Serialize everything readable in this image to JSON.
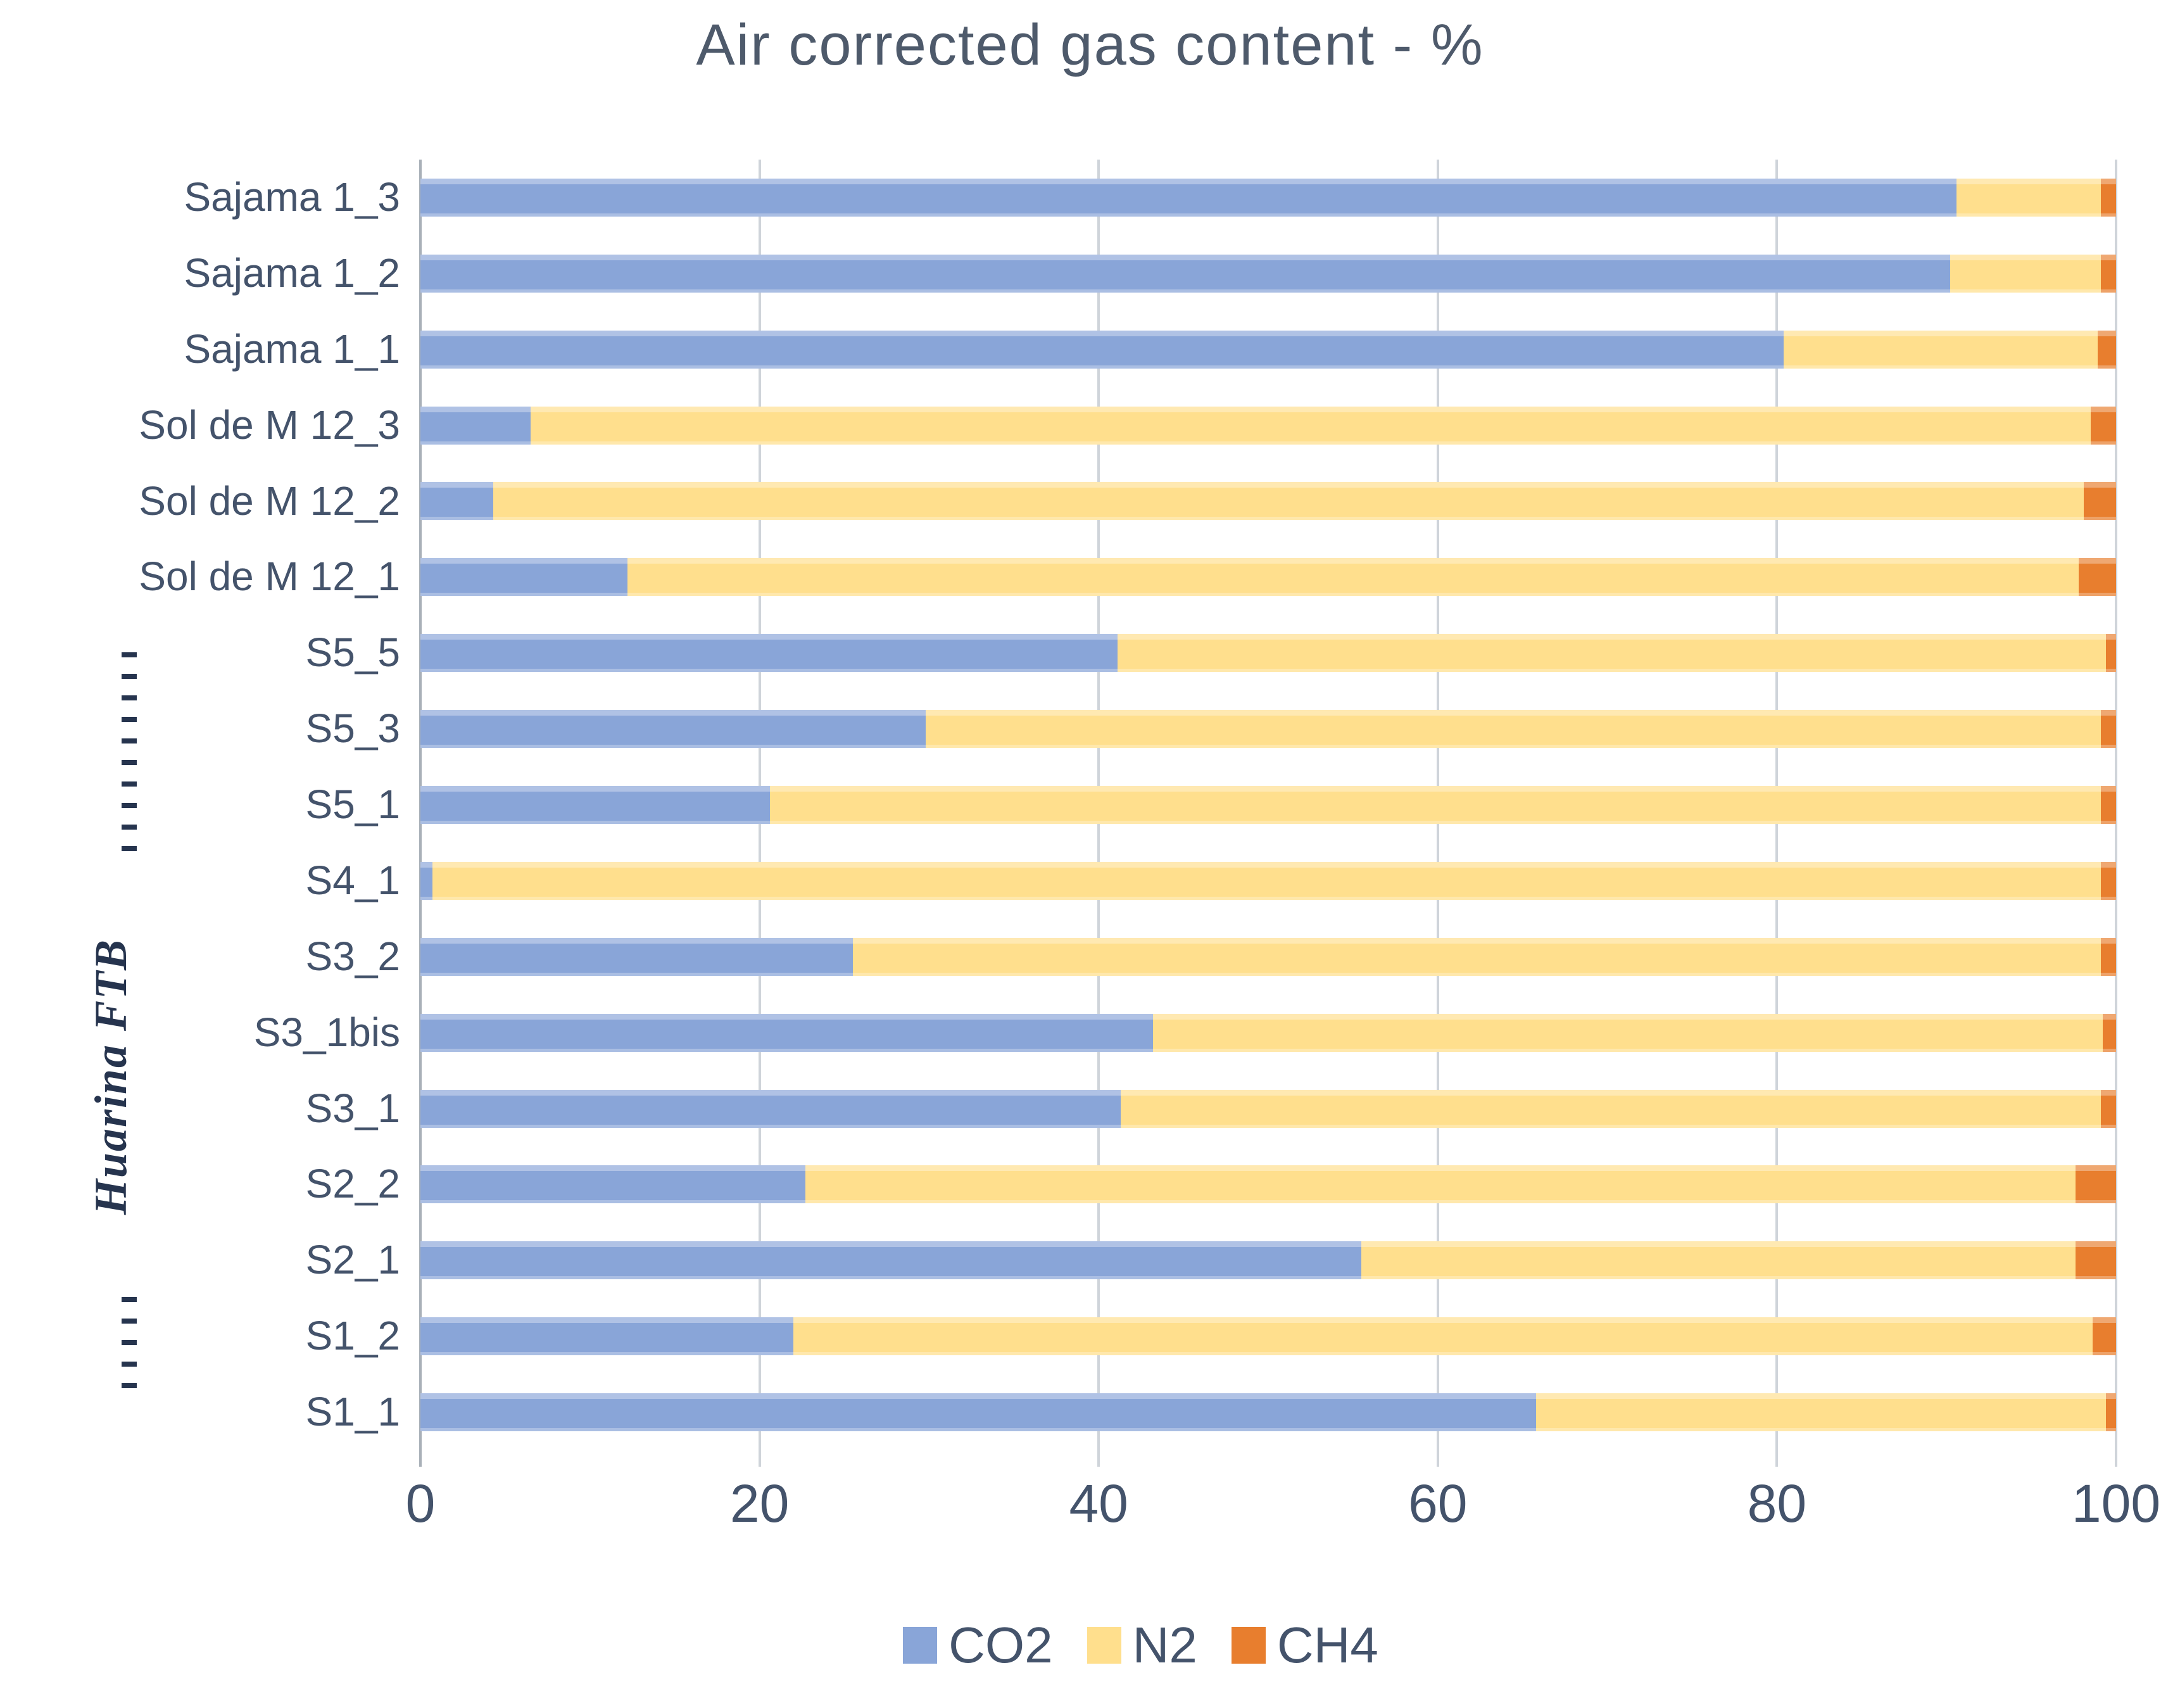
{
  "title": "Air corrected gas content - %",
  "chart_data": {
    "type": "bar",
    "orientation": "horizontal",
    "stacked": true,
    "title": "Air corrected gas content - %",
    "categories": [
      "Sajama 1_3",
      "Sajama 1_2",
      "Sajama 1_1",
      "Sol de M 12_3",
      "Sol de M 12_2",
      "Sol de M 12_1",
      "S5_5",
      "S5_3",
      "S5_1",
      "S4_1",
      "S3_2",
      "S3_1bis",
      "S3_1",
      "S2_2",
      "S2_1",
      "S1_2",
      "S1_1"
    ],
    "series": [
      {
        "name": "CO2",
        "color": "#89a5d8",
        "values": [
          90.6,
          90.2,
          80.4,
          6.5,
          4.3,
          12.2,
          41.1,
          29.8,
          20.6,
          0.7,
          25.5,
          43.2,
          41.3,
          22.7,
          55.5,
          22.0,
          65.8
        ]
      },
      {
        "name": "N2",
        "color": "#ffdf8d",
        "values": [
          8.5,
          8.9,
          18.5,
          92.0,
          93.8,
          85.6,
          58.3,
          69.3,
          78.5,
          98.4,
          73.6,
          56.0,
          57.8,
          74.9,
          42.1,
          76.6,
          33.6
        ]
      },
      {
        "name": "CH4",
        "color": "#e87e2e",
        "values": [
          0.9,
          0.9,
          1.1,
          1.5,
          1.9,
          2.2,
          0.6,
          0.9,
          0.9,
          0.9,
          0.9,
          0.8,
          0.9,
          2.4,
          2.4,
          1.4,
          0.6
        ]
      }
    ],
    "x_ticks": [
      0,
      20,
      40,
      60,
      80,
      100
    ],
    "xlim": [
      0,
      100
    ],
    "grid": true,
    "legend_position": "bottom",
    "group_label": {
      "text": "Huarina FTB",
      "applies_to": [
        "S5_5",
        "S5_3",
        "S5_1",
        "S4_1",
        "S3_2",
        "S3_1bis",
        "S3_1",
        "S2_2",
        "S2_1",
        "S1_2",
        "S1_1"
      ]
    }
  },
  "colors": {
    "gridline": "#cfd4da",
    "axis_line": "#a9b0b8",
    "text": "#44536b",
    "group_label_text": "#26344e"
  }
}
